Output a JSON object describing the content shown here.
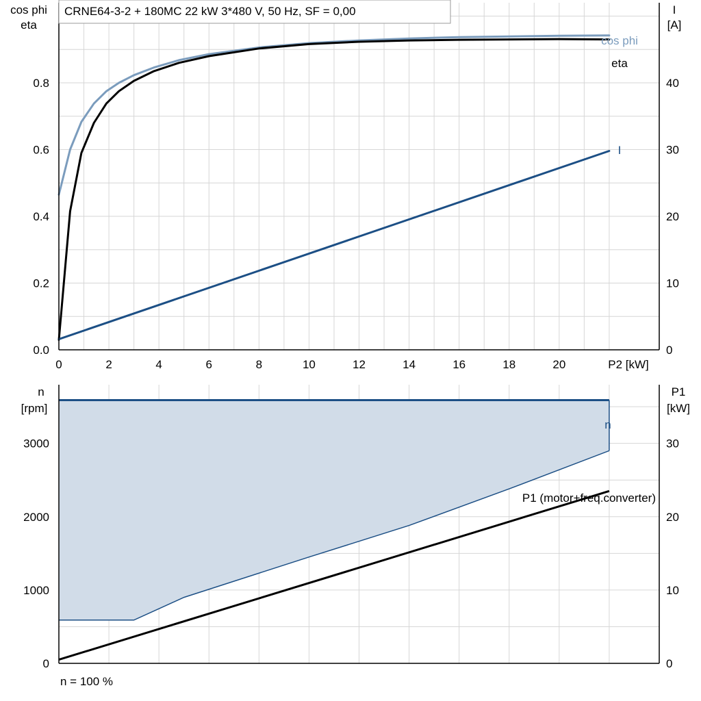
{
  "chart_data": [
    {
      "type": "line",
      "title": "CRNE64-3-2 + 180MC   22 kW   3*480 V, 50 Hz, SF = 0,00",
      "xlabel": "P2 [kW]",
      "ylabel_left": [
        "cos phi",
        "eta"
      ],
      "ylabel_right": [
        "I",
        "[A]"
      ],
      "xlim": [
        0,
        24
      ],
      "xticks": [
        0,
        2,
        4,
        6,
        8,
        10,
        12,
        14,
        16,
        18,
        20
      ],
      "ylim_left": [
        0,
        1.04
      ],
      "yticks_left": [
        "0.0",
        "0.2",
        "0.4",
        "0.6",
        "0.8"
      ],
      "ylim_right": [
        0,
        52
      ],
      "yticks_right": [
        0,
        10,
        20,
        30,
        40
      ],
      "grid": true,
      "series": [
        {
          "name": "cos phi",
          "axis": "left",
          "color": "#7b9cbd",
          "x": [
            0,
            0.45,
            0.9,
            1.4,
            1.9,
            2.4,
            3,
            3.8,
            4.8,
            6,
            8,
            10,
            12,
            14,
            16,
            18,
            20,
            22
          ],
          "y": [
            0.465,
            0.6,
            0.683,
            0.738,
            0.775,
            0.8,
            0.823,
            0.846,
            0.868,
            0.886,
            0.906,
            0.919,
            0.927,
            0.933,
            0.937,
            0.939,
            0.941,
            0.942
          ]
        },
        {
          "name": "eta",
          "axis": "left",
          "color": "#000000",
          "x": [
            0,
            0.45,
            0.9,
            1.4,
            1.9,
            2.4,
            3,
            3.8,
            4.8,
            6,
            8,
            10,
            12,
            14,
            16,
            18,
            20,
            22
          ],
          "y": [
            0.03,
            0.415,
            0.59,
            0.68,
            0.738,
            0.775,
            0.806,
            0.835,
            0.86,
            0.88,
            0.903,
            0.916,
            0.923,
            0.927,
            0.929,
            0.93,
            0.931,
            0.93
          ]
        },
        {
          "name": "I",
          "axis": "right",
          "color": "#1c4f85",
          "x": [
            0,
            22
          ],
          "y": [
            1.6,
            29.8
          ]
        }
      ]
    },
    {
      "type": "area",
      "xlim": [
        0,
        24
      ],
      "ylabel_left": [
        "n",
        "[rpm]"
      ],
      "ylabel_right": [
        "P1",
        "[kW]"
      ],
      "ylim_left": [
        0,
        3800
      ],
      "yticks_left": [
        0,
        1000,
        2000,
        3000
      ],
      "ylim_right": [
        0,
        38
      ],
      "yticks_right": [
        0,
        10,
        20,
        30
      ],
      "grid": true,
      "footnote": "n = 100 %",
      "series": [
        {
          "name": "n",
          "axis": "left",
          "color": "#1c4f85",
          "x": [
            0,
            22
          ],
          "y": [
            3590,
            3590
          ]
        },
        {
          "name": "",
          "axis": "left",
          "role": "lower boundary of shaded operating range",
          "color": "#1c4f85",
          "fill": "#d1dce8",
          "x": [
            0,
            3,
            5,
            10,
            14,
            18,
            22
          ],
          "y": [
            590,
            590,
            900,
            1450,
            1880,
            2380,
            2900
          ]
        },
        {
          "name": "P1 (motor+freq.converter)",
          "axis": "right",
          "color": "#000000",
          "x": [
            0,
            22
          ],
          "y": [
            0.5,
            23.5
          ]
        }
      ]
    }
  ]
}
